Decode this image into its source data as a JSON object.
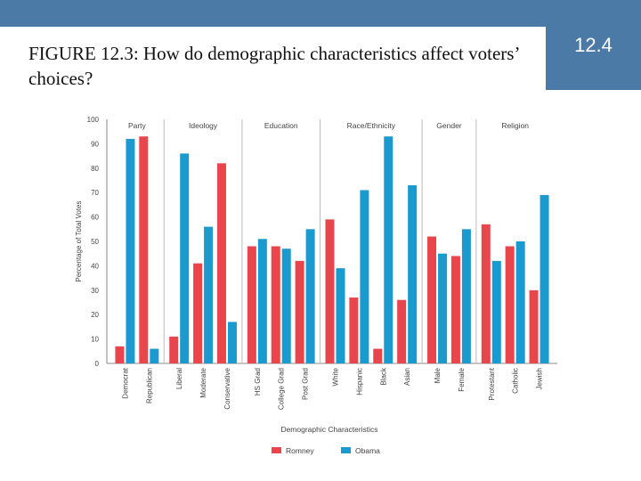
{
  "slide": {
    "badge": "12.4",
    "title": "FIGURE 12.3: How do demographic characteristics affect voters’ choices?"
  },
  "colors": {
    "romney": "#e8454c",
    "obama": "#1b9ad0",
    "band": "#4a7aa5"
  },
  "chart_data": {
    "type": "bar",
    "title": "",
    "xlabel": "Demographic Characteristics",
    "ylabel": "Percentage of Total Votes",
    "ylim": [
      0,
      100
    ],
    "yticks": [
      0,
      10,
      20,
      30,
      40,
      50,
      60,
      70,
      80,
      90,
      100
    ],
    "grid": false,
    "legend_placement": "bottom",
    "groups": [
      {
        "label": "Party",
        "categories": [
          "Democrat",
          "Republican"
        ]
      },
      {
        "label": "Ideology",
        "categories": [
          "Liberal",
          "Moderate",
          "Conservative"
        ]
      },
      {
        "label": "Education",
        "categories": [
          "HS Grad",
          "College Grad",
          "Post Grad"
        ]
      },
      {
        "label": "Race/Ethnicity",
        "categories": [
          "White",
          "Hispanic",
          "Black",
          "Asian"
        ]
      },
      {
        "label": "Gender",
        "categories": [
          "Male",
          "Female"
        ]
      },
      {
        "label": "Religion",
        "categories": [
          "Protestant",
          "Catholic",
          "Jewish"
        ]
      }
    ],
    "categories": [
      "Democrat",
      "Republican",
      "Liberal",
      "Moderate",
      "Conservative",
      "HS Grad",
      "College Grad",
      "Post Grad",
      "White",
      "Hispanic",
      "Black",
      "Asian",
      "Male",
      "Female",
      "Protestant",
      "Catholic",
      "Jewish"
    ],
    "series": [
      {
        "name": "Romney",
        "color": "#e8454c",
        "values": [
          7,
          93,
          11,
          41,
          82,
          48,
          48,
          42,
          59,
          27,
          6,
          26,
          52,
          44,
          57,
          48,
          30
        ]
      },
      {
        "name": "Obama",
        "color": "#1b9ad0",
        "values": [
          92,
          6,
          86,
          56,
          17,
          51,
          47,
          55,
          39,
          71,
          93,
          73,
          45,
          55,
          42,
          50,
          69
        ]
      }
    ]
  }
}
